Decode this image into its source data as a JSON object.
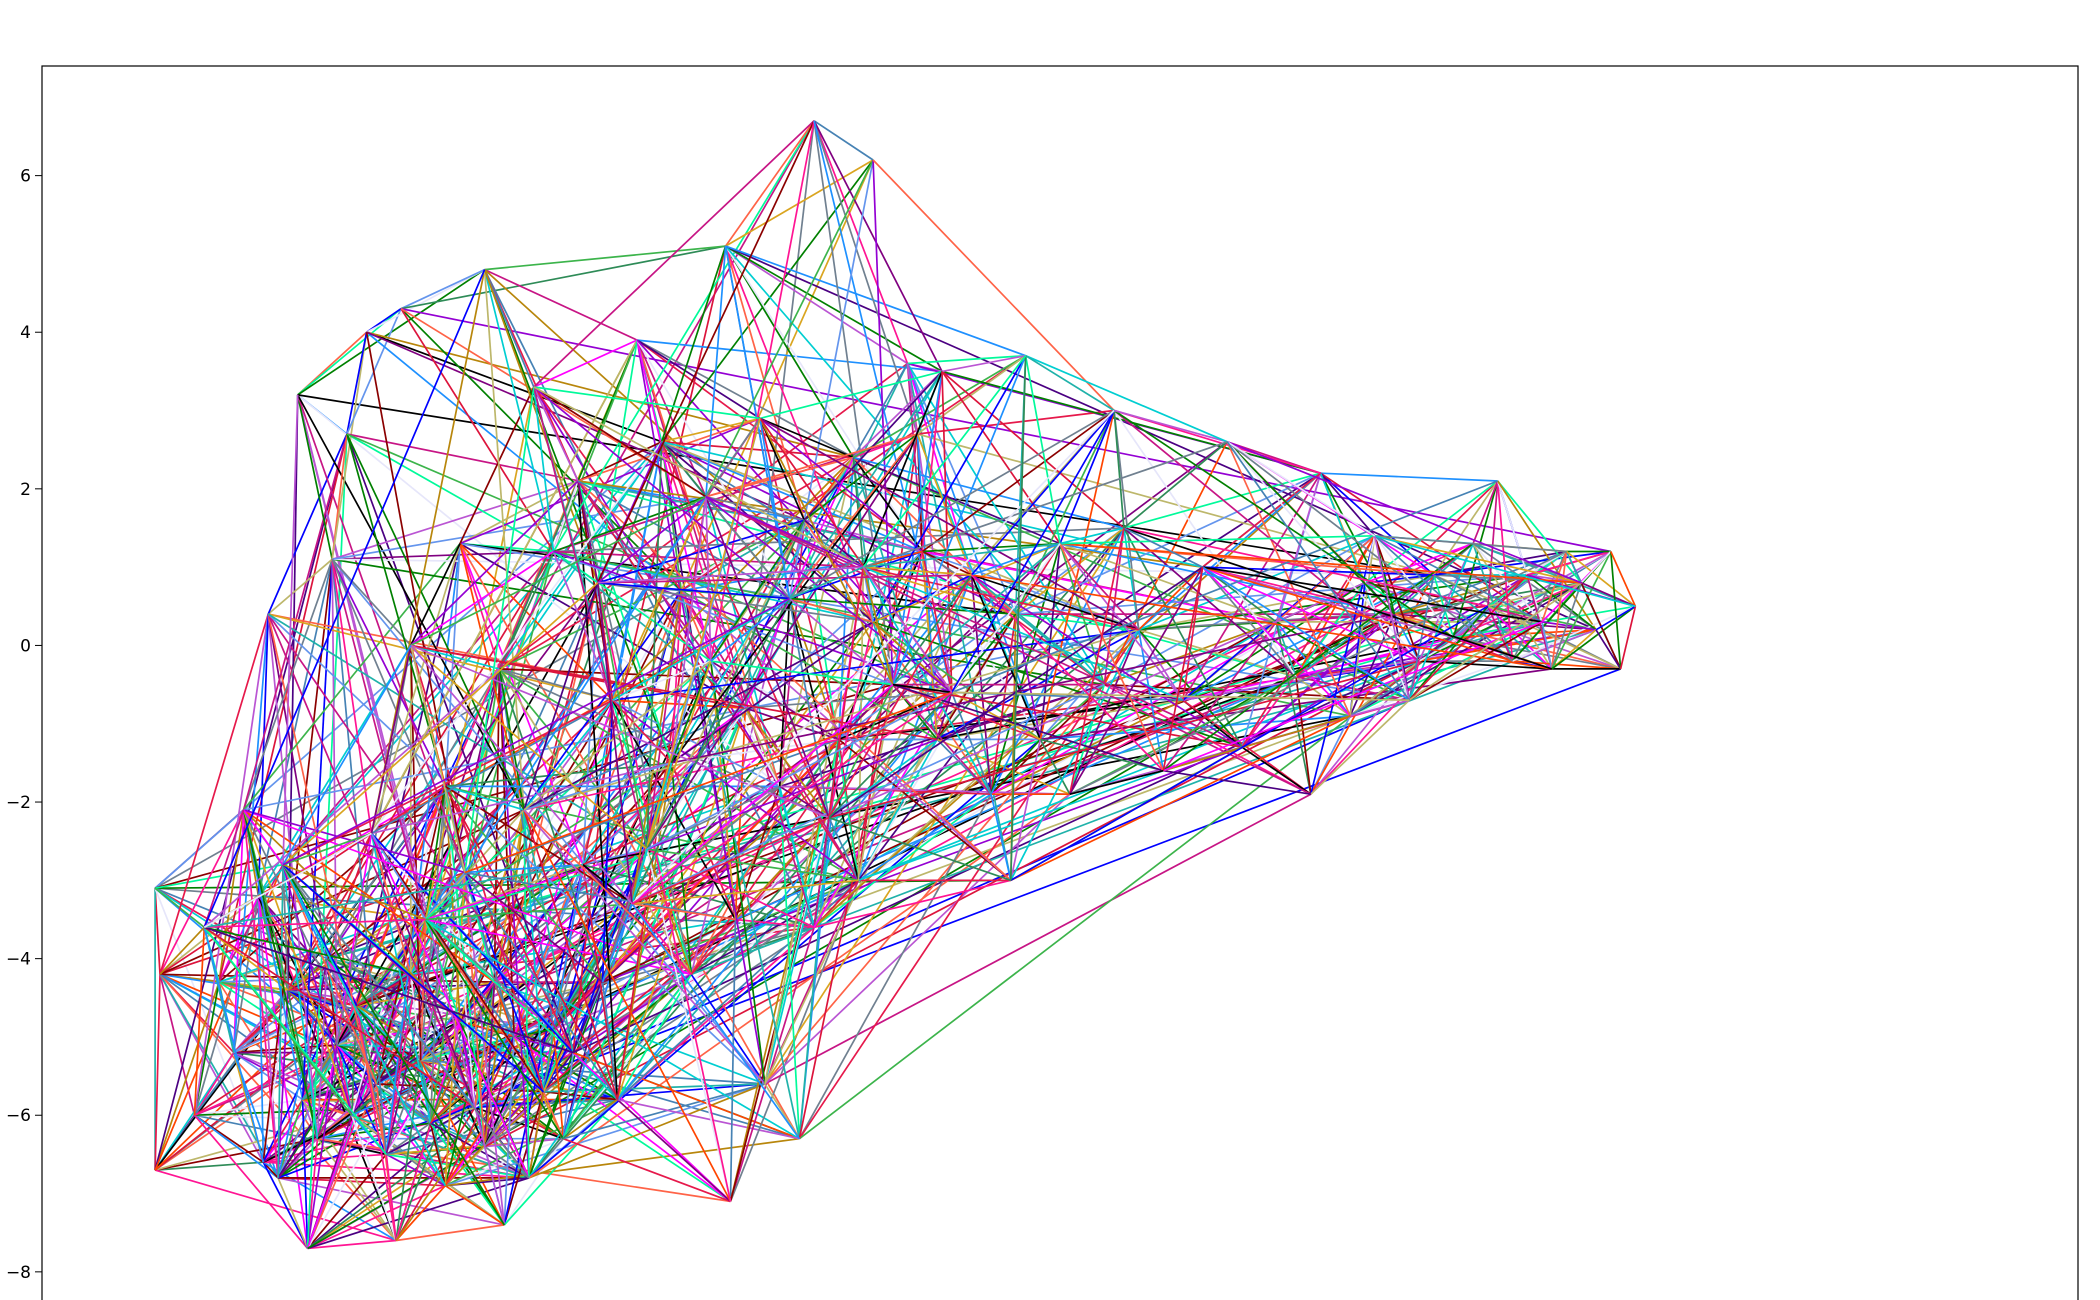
{
  "chart_data": {
    "type": "network",
    "title": "",
    "xlabel": "",
    "ylabel": "",
    "xlim": [
      -13.8,
      27.6
    ],
    "ylim": [
      -8.5,
      7.4
    ],
    "x_ticks": [],
    "y_ticks": [
      -8,
      -6,
      -4,
      -2,
      0,
      2,
      4,
      6
    ],
    "y_tick_labels": [
      "−8",
      "−6",
      "−4",
      "−2",
      "0",
      "2",
      "4",
      "6"
    ],
    "grid": false,
    "legend": "none",
    "edge_colors": [
      "#e6194b",
      "#3cb44b",
      "#0000ff",
      "#800080",
      "#ff00ff",
      "#00ced1",
      "#008000",
      "#ff4500",
      "#1e90ff",
      "#c71585",
      "#b8860b",
      "#00fa9a",
      "#8b0000",
      "#708090",
      "#9400d3",
      "#20b2aa",
      "#ff1493",
      "#000000",
      "#6495ed",
      "#daa520",
      "#4b0082",
      "#ff6347",
      "#2e8b57",
      "#ba55d3",
      "#4682b4",
      "#dc143c",
      "#bdb76b",
      "#e6e6fa"
    ],
    "nodes": [
      [
        -11.5,
        -3.1
      ],
      [
        -11.4,
        -4.2
      ],
      [
        -11.5,
        -6.7
      ],
      [
        -10.7,
        -6.0
      ],
      [
        -10.2,
        -4.3
      ],
      [
        -9.9,
        -5.2
      ],
      [
        -9.4,
        -3.2
      ],
      [
        -9.3,
        -6.6
      ],
      [
        -9.0,
        -6.8
      ],
      [
        -8.8,
        -4.4
      ],
      [
        -8.5,
        -5.8
      ],
      [
        -8.2,
        -6.3
      ],
      [
        -8.0,
        -4.0
      ],
      [
        -8.4,
        -7.7
      ],
      [
        -7.8,
        -5.1
      ],
      [
        -7.5,
        -6.0
      ],
      [
        -7.4,
        -4.6
      ],
      [
        -7.0,
        -5.6
      ],
      [
        -6.8,
        -6.5
      ],
      [
        -6.6,
        -7.6
      ],
      [
        -6.3,
        -4.2
      ],
      [
        -6.1,
        -5.3
      ],
      [
        -5.9,
        -6.1
      ],
      [
        -5.6,
        -6.9
      ],
      [
        -5.3,
        -4.8
      ],
      [
        -5.0,
        -5.9
      ],
      [
        -4.8,
        -6.4
      ],
      [
        -4.6,
        -4.3
      ],
      [
        -4.4,
        -7.4
      ],
      [
        -4.2,
        -5.0
      ],
      [
        -3.9,
        -6.8
      ],
      [
        -3.6,
        -5.7
      ],
      [
        -3.4,
        -4.9
      ],
      [
        -3.2,
        -6.3
      ],
      [
        -3.0,
        -5.2
      ],
      [
        -6.0,
        -3.5
      ],
      [
        -9.7,
        -2.1
      ],
      [
        -9.2,
        0.4
      ],
      [
        -8.6,
        3.2
      ],
      [
        -7.9,
        1.1
      ],
      [
        -7.6,
        2.7
      ],
      [
        -7.2,
        4.0
      ],
      [
        -6.5,
        4.3
      ],
      [
        -5.3,
        1.3
      ],
      [
        -4.8,
        4.8
      ],
      [
        -5.6,
        -1.8
      ],
      [
        -4.5,
        -0.3
      ],
      [
        -2.8,
        -2.8
      ],
      [
        -2.4,
        -4.3
      ],
      [
        -2.1,
        -5.8
      ],
      [
        -0.6,
        -4.2
      ],
      [
        0.2,
        -7.1
      ],
      [
        0.3,
        -3.5
      ],
      [
        0.9,
        -5.6
      ],
      [
        1.6,
        -6.3
      ],
      [
        1.9,
        -3.6
      ],
      [
        2.8,
        -3.0
      ],
      [
        2.4,
        -1.2
      ],
      [
        1.2,
        -1.8
      ],
      [
        0.5,
        -0.8
      ],
      [
        -0.8,
        0.7
      ],
      [
        -1.7,
        3.9
      ],
      [
        -2.9,
        2.1
      ],
      [
        -3.4,
        1.2
      ],
      [
        -1.2,
        2.6
      ],
      [
        0.1,
        5.1
      ],
      [
        1.9,
        6.7
      ],
      [
        3.1,
        6.2
      ],
      [
        3.8,
        3.6
      ],
      [
        2.7,
        2.4
      ],
      [
        1.7,
        1.6
      ],
      [
        4.0,
        2.7
      ],
      [
        4.5,
        3.5
      ],
      [
        4.1,
        1.2
      ],
      [
        3.1,
        0.3
      ],
      [
        4.4,
        -1.2
      ],
      [
        5.5,
        -1.9
      ],
      [
        6.0,
        0.4
      ],
      [
        6.5,
        -1.2
      ],
      [
        7.8,
        -0.5
      ],
      [
        8.5,
        0.2
      ],
      [
        9.4,
        -0.7
      ],
      [
        10.6,
        -1.3
      ],
      [
        11.3,
        0.3
      ],
      [
        11.7,
        -0.4
      ],
      [
        12.0,
        -1.9
      ],
      [
        12.2,
        2.2
      ],
      [
        12.8,
        -0.9
      ],
      [
        13.1,
        0.8
      ],
      [
        13.7,
        0.4
      ],
      [
        14.2,
        -0.2
      ],
      [
        14.5,
        0.9
      ],
      [
        14.9,
        0.1
      ],
      [
        15.3,
        1.3
      ],
      [
        15.6,
        0.5
      ],
      [
        15.8,
        2.1
      ],
      [
        16.1,
        -0.2
      ],
      [
        16.4,
        0.9
      ],
      [
        16.7,
        0.3
      ],
      [
        16.9,
        -0.3
      ],
      [
        17.2,
        1.2
      ],
      [
        17.5,
        0.8
      ],
      [
        17.8,
        0.2
      ],
      [
        18.1,
        1.2
      ],
      [
        18.3,
        -0.3
      ],
      [
        18.6,
        0.5
      ],
      [
        13.3,
        1.4
      ],
      [
        14.0,
        -0.7
      ],
      [
        -1.0,
        -1.5
      ],
      [
        -2.2,
        -0.7
      ],
      [
        0.8,
        2.9
      ],
      [
        -3.8,
        3.3
      ],
      [
        -0.3,
        1.9
      ],
      [
        2.2,
        -2.2
      ],
      [
        -1.5,
        -2.6
      ],
      [
        3.5,
        -0.5
      ],
      [
        5.1,
        0.9
      ],
      [
        6.9,
        1.3
      ],
      [
        8.2,
        1.5
      ],
      [
        9.8,
        1.0
      ],
      [
        10.3,
        2.6
      ],
      [
        8.0,
        3.0
      ],
      [
        6.2,
        3.7
      ],
      [
        7.1,
        -1.9
      ],
      [
        5.9,
        -3.0
      ],
      [
        9.0,
        -1.6
      ],
      [
        -7.1,
        -2.4
      ],
      [
        -5.2,
        -2.9
      ],
      [
        -4.0,
        -2.1
      ],
      [
        -2.5,
        0.8
      ],
      [
        -6.3,
        0.0
      ],
      [
        -0.2,
        -0.2
      ],
      [
        1.4,
        0.6
      ],
      [
        2.9,
        1.0
      ],
      [
        4.7,
        -0.6
      ],
      [
        -1.8,
        -3.3
      ],
      [
        -8.9,
        -2.8
      ],
      [
        -10.5,
        -3.6
      ]
    ],
    "edge_count": 2400
  }
}
